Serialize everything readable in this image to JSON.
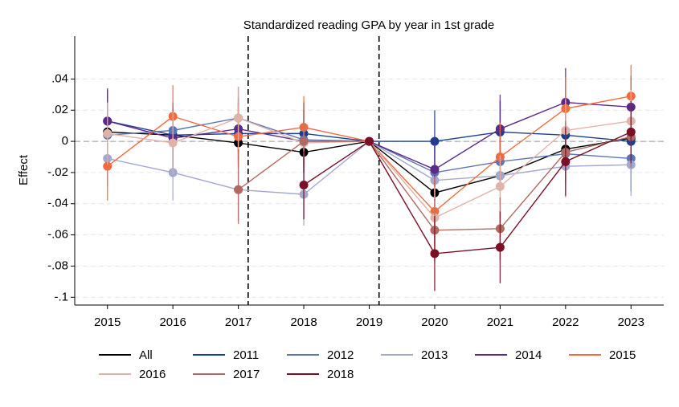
{
  "chart_data": {
    "type": "line",
    "title": "Standardized reading GPA by year in 1st grade",
    "y_label": "Effect",
    "x": [
      2015,
      2016,
      2017,
      2018,
      2019,
      2020,
      2021,
      2022,
      2023
    ],
    "xlim": [
      2014.5,
      2023.5
    ],
    "xticks": [
      2015,
      2016,
      2017,
      2018,
      2019,
      2020,
      2021,
      2022,
      2023
    ],
    "ylim": [
      -0.105,
      0.0675
    ],
    "yticks": [
      {
        "value": 0.04,
        "label": ".04"
      },
      {
        "value": 0.02,
        "label": ".02"
      },
      0,
      {
        "value": -0.02,
        "label": "-.02"
      },
      {
        "value": -0.04,
        "label": "-.04"
      },
      {
        "value": -0.06,
        "label": "-.06"
      },
      {
        "value": -0.08,
        "label": "-.08"
      },
      {
        "value": -0.1,
        "label": "-.1"
      }
    ],
    "grid": true,
    "reference_line": 0,
    "vlines": [
      2017.15,
      2019.15
    ],
    "legend_position": "bottom",
    "series": [
      {
        "name": "All",
        "color": "#000000",
        "values": [
          0.006,
          0.004,
          -0.001,
          -0.007,
          0,
          -0.033,
          -0.022,
          -0.005,
          0.002
        ],
        "errors": [
          0.005,
          0.005,
          0.006,
          0.006,
          0,
          0.005,
          0.005,
          0.005,
          0.005
        ]
      },
      {
        "name": "2011",
        "color": "#1a3f8f",
        "values": [
          0.013,
          0.004,
          0.005,
          0.005,
          0,
          0.0,
          0.006,
          0.004,
          0.0
        ],
        "errors": [
          0.02,
          0.02,
          0.02,
          0.02,
          0,
          0.02,
          0.02,
          0.02,
          0.032
        ]
      },
      {
        "name": "2012",
        "color": "#5f74b3",
        "values": [
          0.004,
          0.007,
          0.015,
          0.001,
          0,
          -0.02,
          -0.013,
          -0.008,
          -0.011
        ],
        "errors": [
          0.018,
          0.018,
          0.02,
          0.018,
          0,
          0.018,
          0.018,
          0.02,
          0.02
        ]
      },
      {
        "name": "2013",
        "color": "#a3a8cf",
        "values": [
          -0.011,
          -0.02,
          -0.031,
          -0.034,
          0,
          -0.025,
          -0.022,
          -0.016,
          -0.015
        ],
        "errors": [
          0.018,
          0.018,
          0.02,
          0.02,
          0,
          0.018,
          0.018,
          0.02,
          0.02
        ]
      },
      {
        "name": "2014",
        "color": "#5b2a88",
        "values": [
          0.013,
          0.002,
          0.008,
          0.0,
          0,
          -0.018,
          0.008,
          0.025,
          0.022
        ],
        "errors": [
          0.021,
          0.02,
          0.02,
          0.02,
          0,
          0.02,
          0.022,
          0.022,
          0.02
        ]
      },
      {
        "name": "2015",
        "color": "#f26b3f",
        "values": [
          -0.016,
          0.016,
          0.003,
          0.009,
          0,
          -0.045,
          -0.01,
          0.021,
          0.029
        ],
        "errors": [
          0.022,
          0.02,
          0.02,
          0.02,
          0,
          0.022,
          0.022,
          0.02,
          0.02
        ]
      },
      {
        "name": "2016",
        "color": "#e0b3a8",
        "values": [
          0.005,
          -0.001,
          0.015,
          -0.001,
          0,
          -0.049,
          -0.029,
          0.007,
          0.013
        ],
        "errors": [
          0.02,
          0.02,
          0.02,
          0.02,
          0,
          0.02,
          0.02,
          0.02,
          0.02
        ]
      },
      {
        "name": "2017",
        "color": "#b06a62",
        "values": [
          null,
          null,
          -0.031,
          0.0,
          0,
          -0.057,
          -0.056,
          -0.007,
          0.003
        ],
        "errors": [
          null,
          null,
          0.022,
          0.02,
          0,
          0.02,
          0.02,
          0.02,
          0.02
        ]
      },
      {
        "name": "2018",
        "color": "#7a0f25",
        "values": [
          null,
          null,
          null,
          -0.028,
          0,
          -0.072,
          -0.068,
          -0.013,
          0.006
        ],
        "errors": [
          null,
          null,
          null,
          0.022,
          0,
          0.024,
          0.023,
          0.022,
          0.02
        ]
      }
    ]
  }
}
